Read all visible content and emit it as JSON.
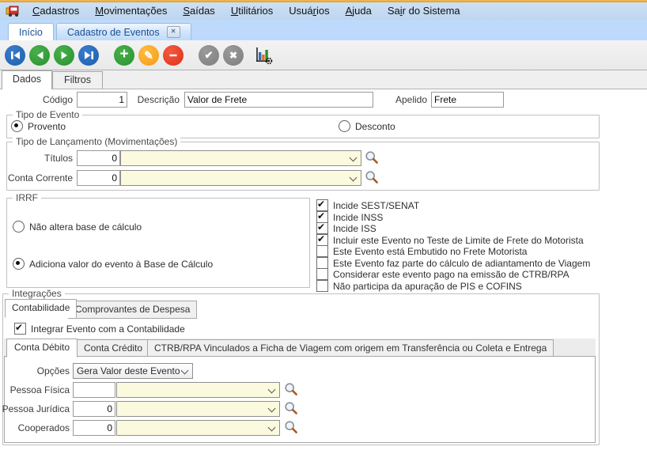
{
  "menu": {
    "items": [
      {
        "label": "&Cadastros"
      },
      {
        "label": "&Movimentações"
      },
      {
        "label": "&Saídas"
      },
      {
        "label": "&Utilitários"
      },
      {
        "label": "Usuá&rios"
      },
      {
        "label": "&Ajuda"
      },
      {
        "label": "Sa&ir do Sistema"
      }
    ]
  },
  "doc_tabs": {
    "inicio": "Início",
    "cadastro": "Cadastro de Eventos"
  },
  "toolbar": {
    "icons": [
      "first-record",
      "prior-record",
      "next-record",
      "last-record",
      "insert",
      "edit",
      "delete",
      "confirm",
      "cancel",
      "chart-settings"
    ],
    "insert_glyph": "+",
    "edit_glyph": "✎",
    "confirm_glyph": "✔",
    "cancel_glyph": "✖"
  },
  "page_tabs": {
    "dados": "Dados",
    "filtros": "Filtros"
  },
  "header_fields": {
    "codigo_label": "Código",
    "codigo_value": "1",
    "descricao_label": "Descrição",
    "descricao_value": "Valor de Frete",
    "apelido_label": "Apelido",
    "apelido_value": "Frete"
  },
  "tipo_evento": {
    "title": "Tipo de Evento",
    "provento": {
      "label": "Provento",
      "selected": true
    },
    "desconto": {
      "label": "Desconto",
      "selected": false
    }
  },
  "tipo_lancamento": {
    "title": "Tipo de Lançamento (Movimentações)",
    "titulos": {
      "label": "Títulos",
      "code": "0",
      "value": ""
    },
    "conta_corrente": {
      "label": "Conta Corrente",
      "code": "0",
      "value": ""
    }
  },
  "irrf": {
    "title": "IRRF",
    "nao_altera": {
      "label": "Não altera base de cálculo",
      "selected": false
    },
    "adiciona": {
      "label": "Adiciona valor do evento à Base de Cálculo",
      "selected": true
    }
  },
  "flags": {
    "items": [
      {
        "label": "Incide SEST/SENAT",
        "checked": true
      },
      {
        "label": "Incide INSS",
        "checked": true
      },
      {
        "label": "Incide ISS",
        "checked": true
      },
      {
        "label": "Incluir este Evento no Teste de Limite de Frete do Motorista",
        "checked": true
      },
      {
        "label": "Este Evento está Embutido no Frete Motorista",
        "checked": false
      },
      {
        "label": "Este Evento faz parte do cálculo de adiantamento de Viagem",
        "checked": false
      },
      {
        "label": "Considerar este evento pago na emissão de CTRB/RPA",
        "checked": false
      },
      {
        "label": "Não participa da apuração de PIS e COFINS",
        "checked": false
      }
    ]
  },
  "integracoes": {
    "title": "Integrações",
    "tab_contabilidade": "Contabilidade",
    "tab_comprovantes": "Comprovantes de Despesa",
    "integrar": {
      "label": "Integrar Evento com a Contabilidade",
      "checked": true
    },
    "tab_conta_debito": "Conta Débito",
    "tab_conta_credito": "Conta Crédito",
    "tab_ctrb": "CTRB/RPA Vinculados a Ficha de Viagem com origem em Transferência ou Coleta e Entrega",
    "opcoes": {
      "label": "Opções",
      "value": "Gera Valor deste Evento"
    },
    "pessoa_fisica": {
      "label": "Pessoa Física",
      "code": "",
      "value": ""
    },
    "pessoa_juridica": {
      "label": "Pessoa Jurídica",
      "code": "0",
      "value": ""
    },
    "cooperados": {
      "label": "Cooperados",
      "code": "0",
      "value": ""
    }
  },
  "colors": {
    "top_accent": "#df9b2d",
    "menu_bg": "#c5dbf2",
    "tabstrip_bg": "#bdd9fb",
    "nav_blue": "#1c5fae",
    "nav_green": "#2a9130",
    "edit_orange": "#f49d13",
    "delete_red": "#e03018",
    "neutral_gray": "#7e7e7e",
    "combo_yellow": "#fbfade"
  }
}
